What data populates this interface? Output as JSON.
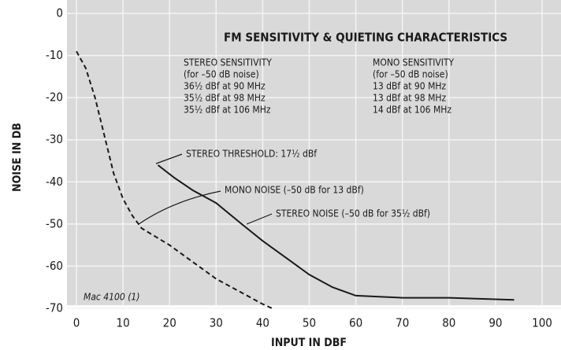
{
  "chart_data": {
    "type": "line",
    "title": "FM SENSITIVITY & QUIETING CHARACTERISTICS",
    "xlabel": "INPUT IN DBF",
    "ylabel": "NOISE IN DB",
    "xlim": [
      0,
      100
    ],
    "ylim": [
      -70,
      0
    ],
    "xticks": [
      0,
      10,
      20,
      30,
      40,
      50,
      60,
      70,
      80,
      90,
      100
    ],
    "yticks": [
      0,
      -10,
      -20,
      -30,
      -40,
      -50,
      -60,
      -70
    ],
    "grid": true,
    "series": [
      {
        "name": "MONO NOISE (–50 dB for 13 dBf)",
        "color": "#1a1a1a",
        "dashed": true,
        "x": [
          0,
          2,
          4,
          6,
          8,
          10,
          12,
          14,
          17,
          20,
          25,
          30,
          35,
          40,
          42
        ],
        "values": [
          -9,
          -13,
          -20,
          -29,
          -38,
          -44,
          -48,
          -51,
          -53,
          -55,
          -59,
          -63,
          -66,
          -69,
          -70
        ]
      },
      {
        "name": "STEREO NOISE (–50 dB for 35½ dBf)",
        "color": "#1a1a1a",
        "dashed": false,
        "x": [
          17.5,
          21,
          25,
          30,
          35.5,
          40,
          45,
          50,
          55,
          60,
          70,
          80,
          94
        ],
        "values": [
          -36,
          -39,
          -42,
          -45,
          -50,
          -54,
          -58,
          -62,
          -65,
          -67,
          -67.5,
          -67.5,
          -68
        ]
      }
    ],
    "annotations": {
      "stereo_sensitivity": [
        "STEREO SENSITIVITY",
        "(for –50 dB noise)",
        "36½ dBf at 90 MHz",
        "35½ dBf at 98 MHz",
        "35½ dBf at 106 MHz"
      ],
      "mono_sensitivity": [
        "MONO SENSITIVITY",
        "(for –50 dB noise)",
        "13 dBf at 90 MHz",
        "13 dBf at 98 MHz",
        "14 dBf at 106 MHz"
      ],
      "stereo_threshold": "STEREO THRESHOLD: 17½ dBf",
      "model": "Mac 4100 (1)"
    }
  }
}
